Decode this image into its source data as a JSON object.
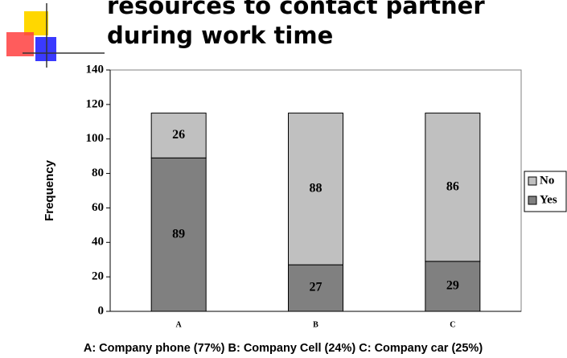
{
  "chart_data": {
    "type": "stacked_bar",
    "title": [
      "resources to contact partner",
      "during work time"
    ],
    "ylabel": "Frequency",
    "caption": "A: Company phone (77%)   B: Company Cell (24%)  C: Company car  (25%)",
    "categories": [
      "A",
      "B",
      "C"
    ],
    "series": [
      {
        "name": "Yes",
        "color": "#808080",
        "values": [
          89,
          27,
          29
        ]
      },
      {
        "name": "No",
        "color": "#c0c0c0",
        "values": [
          26,
          88,
          86
        ]
      }
    ],
    "ylim": [
      0,
      140
    ],
    "yticks": [
      0,
      20,
      40,
      60,
      80,
      100,
      120,
      140
    ],
    "legend": "right"
  }
}
